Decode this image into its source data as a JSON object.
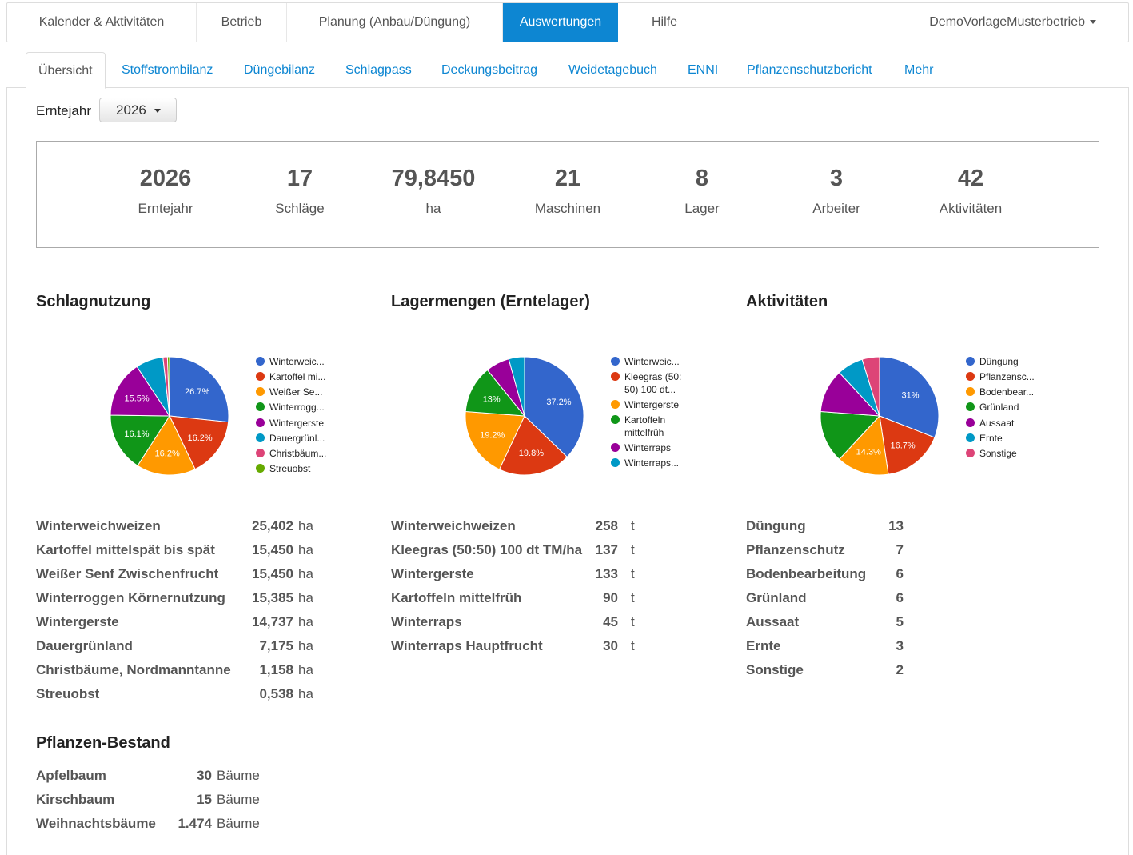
{
  "topnav": {
    "items": [
      "Kalender & Aktivitäten",
      "Betrieb",
      "Planung (Anbau/Düngung)",
      "Auswertungen",
      "Hilfe"
    ],
    "user": "DemoVorlageMusterbetrieb"
  },
  "subtabs": [
    "Übersicht",
    "Stoffstrombilanz",
    "Düngebilanz",
    "Schlagpass",
    "Deckungsbeitrag",
    "Weidetagebuch",
    "ENNI",
    "Pflanzenschutzbericht",
    "Mehr"
  ],
  "filter": {
    "label": "Erntejahr",
    "value": "2026"
  },
  "stats": [
    {
      "value": "2026",
      "label": "Erntejahr"
    },
    {
      "value": "17",
      "label": "Schläge"
    },
    {
      "value": "79,8450",
      "label": "ha"
    },
    {
      "value": "21",
      "label": "Maschinen"
    },
    {
      "value": "8",
      "label": "Lager"
    },
    {
      "value": "3",
      "label": "Arbeiter"
    },
    {
      "value": "42",
      "label": "Aktivitäten"
    }
  ],
  "sections": {
    "schlagnutzung": {
      "title": "Schlagnutzung",
      "unit": "ha",
      "legend": [
        "Winterweic...",
        "Kartoffel mi...",
        "Weißer Se...",
        "Winterrogg...",
        "Wintergerste",
        "Dauergrünl...",
        "Christbäum...",
        "Streuobst"
      ],
      "rows": [
        {
          "name": "Winterweichweizen",
          "value": "25,402"
        },
        {
          "name": "Kartoffel mittelspät bis spät",
          "value": "15,450"
        },
        {
          "name": "Weißer Senf Zwischenfrucht",
          "value": "15,450"
        },
        {
          "name": "Winterroggen Körnernutzung",
          "value": "15,385"
        },
        {
          "name": "Wintergerste",
          "value": "14,737"
        },
        {
          "name": "Dauergrünland",
          "value": "7,175"
        },
        {
          "name": "Christbäume, Nordmanntanne",
          "value": "1,158"
        },
        {
          "name": "Streuobst",
          "value": "0,538"
        }
      ]
    },
    "lagermengen": {
      "title": "Lagermengen (Erntelager)",
      "unit": "t",
      "legend": [
        "Winterweic...",
        "Kleegras (50:",
        "50) 100 dt...",
        "Wintergerste",
        "Kartoffeln",
        "mittelfrüh",
        "Winterraps",
        "Winterraps..."
      ],
      "rows": [
        {
          "name": "Winterweichweizen",
          "value": "258"
        },
        {
          "name": "Kleegras (50:50) 100 dt TM/ha",
          "value": "137"
        },
        {
          "name": "Wintergerste",
          "value": "133"
        },
        {
          "name": "Kartoffeln mittelfrüh",
          "value": "90"
        },
        {
          "name": "Winterraps",
          "value": "45"
        },
        {
          "name": "Winterraps Hauptfrucht",
          "value": "30"
        }
      ]
    },
    "aktivitaeten": {
      "title": "Aktivitäten",
      "legend": [
        "Düngung",
        "Pflanzensc...",
        "Bodenbear...",
        "Grünland",
        "Aussaat",
        "Ernte",
        "Sonstige"
      ],
      "rows": [
        {
          "name": "Düngung",
          "value": "13"
        },
        {
          "name": "Pflanzenschutz",
          "value": "7"
        },
        {
          "name": "Bodenbearbeitung",
          "value": "6"
        },
        {
          "name": "Grünland",
          "value": "6"
        },
        {
          "name": "Aussaat",
          "value": "5"
        },
        {
          "name": "Ernte",
          "value": "3"
        },
        {
          "name": "Sonstige",
          "value": "2"
        }
      ]
    },
    "bestand": {
      "title": "Pflanzen-Bestand",
      "unit": "Bäume",
      "rows": [
        {
          "name": "Apfelbaum",
          "value": "30"
        },
        {
          "name": "Kirschbaum",
          "value": "15"
        },
        {
          "name": "Weihnachtsbäume",
          "value": "1.474"
        }
      ]
    }
  },
  "chart_data": [
    {
      "type": "pie",
      "title": "Schlagnutzung",
      "categories": [
        "Winterweichweizen",
        "Kartoffel mittelspät bis spät",
        "Weißer Senf Zwischenfrucht",
        "Winterroggen Körnernutzung",
        "Wintergerste",
        "Dauergrünland",
        "Christbäume, Nordmanntanne",
        "Streuobst"
      ],
      "values": [
        25.402,
        15.45,
        15.45,
        15.385,
        14.737,
        7.175,
        1.158,
        0.538
      ],
      "slice_labels": [
        "26.7%",
        "16.2%",
        "16.2%",
        "16.1%",
        "15.5%",
        "",
        "",
        ""
      ],
      "colors": [
        "#3366cc",
        "#dc3912",
        "#ff9900",
        "#109618",
        "#990099",
        "#0099c6",
        "#dd4477",
        "#66aa00"
      ]
    },
    {
      "type": "pie",
      "title": "Lagermengen (Erntelager)",
      "categories": [
        "Winterweichweizen",
        "Kleegras (50:50) 100 dt TM/ha",
        "Wintergerste",
        "Kartoffeln mittelfrüh",
        "Winterraps",
        "Winterraps Hauptfrucht"
      ],
      "values": [
        258,
        137,
        133,
        90,
        45,
        30
      ],
      "slice_labels": [
        "37.2%",
        "19.8%",
        "19.2%",
        "13%",
        "",
        ""
      ],
      "colors": [
        "#3366cc",
        "#dc3912",
        "#ff9900",
        "#109618",
        "#990099",
        "#0099c6"
      ]
    },
    {
      "type": "pie",
      "title": "Aktivitäten",
      "categories": [
        "Düngung",
        "Pflanzenschutz",
        "Bodenbearbeitung",
        "Grünland",
        "Aussaat",
        "Ernte",
        "Sonstige"
      ],
      "values": [
        13,
        7,
        6,
        6,
        5,
        3,
        2
      ],
      "slice_labels": [
        "31%",
        "16.7%",
        "14.3%",
        "",
        "",
        "",
        ""
      ],
      "colors": [
        "#3366cc",
        "#dc3912",
        "#ff9900",
        "#109618",
        "#990099",
        "#0099c6",
        "#dd4477"
      ]
    }
  ]
}
